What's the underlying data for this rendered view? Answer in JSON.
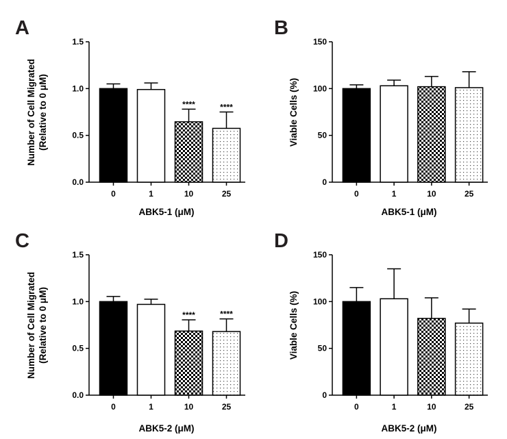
{
  "colors": {
    "ink": "#000000",
    "letter": "#231f20",
    "background": "#ffffff"
  },
  "chart_data": [
    {
      "panel": "A",
      "type": "bar",
      "categories": [
        "0",
        "1",
        "10",
        "25"
      ],
      "values": [
        1.0,
        0.99,
        0.645,
        0.575
      ],
      "errors": [
        0.05,
        0.07,
        0.135,
        0.175
      ],
      "patterns": [
        "solid",
        "open",
        "checker",
        "dots"
      ],
      "significance": [
        "",
        "",
        "****",
        "****"
      ],
      "xlabel": "ABK5-1 (μM)",
      "ylabel": "Number of Cell Migrated",
      "ylabel2": "(Relative to 0 μM)",
      "ylim": [
        0,
        1.5
      ],
      "yticks": [
        0.0,
        0.5,
        1.0,
        1.5
      ],
      "ytick_labels": [
        "0.0",
        "0.5",
        "1.0",
        "1.5"
      ]
    },
    {
      "panel": "B",
      "type": "bar",
      "categories": [
        "0",
        "1",
        "10",
        "25"
      ],
      "values": [
        100,
        103,
        102,
        101
      ],
      "errors": [
        4,
        6,
        11,
        17
      ],
      "patterns": [
        "solid",
        "open",
        "checker",
        "dots"
      ],
      "significance": [
        "",
        "",
        "",
        ""
      ],
      "xlabel": "ABK5-1 (μM)",
      "ylabel": "Viable Cells (%)",
      "ylabel2": "",
      "ylim": [
        0,
        150
      ],
      "yticks": [
        0,
        50,
        100,
        150
      ],
      "ytick_labels": [
        "0",
        "50",
        "100",
        "150"
      ]
    },
    {
      "panel": "C",
      "type": "bar",
      "categories": [
        "0",
        "1",
        "10",
        "25"
      ],
      "values": [
        1.0,
        0.97,
        0.685,
        0.68
      ],
      "errors": [
        0.055,
        0.055,
        0.12,
        0.135
      ],
      "patterns": [
        "solid",
        "open",
        "checker",
        "dots"
      ],
      "significance": [
        "",
        "",
        "****",
        "****"
      ],
      "xlabel": "ABK5-2 (μM)",
      "ylabel": "Number of Cell Migrated",
      "ylabel2": "(Relative to 0 μM)",
      "ylim": [
        0,
        1.5
      ],
      "yticks": [
        0.0,
        0.5,
        1.0,
        1.5
      ],
      "ytick_labels": [
        "0.0",
        "0.5",
        "1.0",
        "1.5"
      ]
    },
    {
      "panel": "D",
      "type": "bar",
      "categories": [
        "0",
        "1",
        "10",
        "25"
      ],
      "values": [
        100,
        103,
        82,
        77
      ],
      "errors": [
        15,
        32,
        22,
        15
      ],
      "patterns": [
        "solid",
        "open",
        "checker",
        "dots"
      ],
      "significance": [
        "",
        "",
        "",
        ""
      ],
      "xlabel": "ABK5-2 (μM)",
      "ylabel": "Viable Cells (%)",
      "ylabel2": "",
      "ylim": [
        0,
        150
      ],
      "yticks": [
        0,
        50,
        100,
        150
      ],
      "ytick_labels": [
        "0",
        "50",
        "100",
        "150"
      ]
    }
  ]
}
